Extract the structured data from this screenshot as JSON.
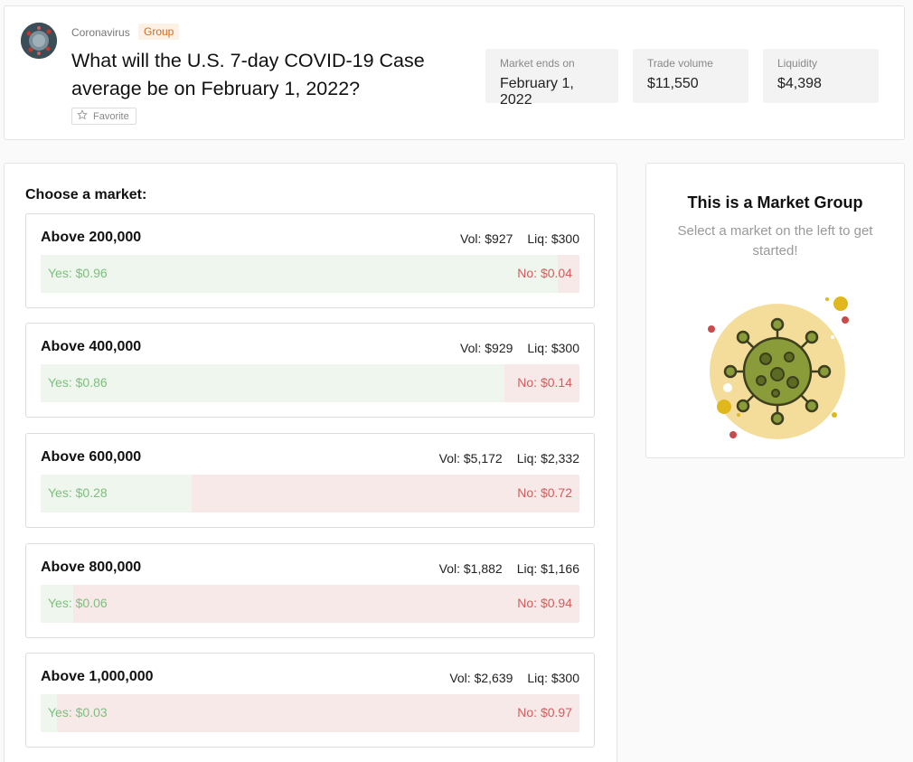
{
  "header": {
    "category": "Coronavirus",
    "badge": "Group",
    "question": "What will the U.S. 7-day COVID-19 Case average be on February 1, 2022?",
    "favorite_label": "Favorite",
    "stats": [
      {
        "label": "Market ends on",
        "value": "February 1, 2022"
      },
      {
        "label": "Trade volume",
        "value": "$11,550"
      },
      {
        "label": "Liquidity",
        "value": "$4,398"
      }
    ]
  },
  "markets": {
    "heading": "Choose a market:",
    "items": [
      {
        "title": "Above 200,000",
        "vol": "Vol: $927",
        "liq": "Liq: $300",
        "yes": "Yes: $0.96",
        "no": "No: $0.04",
        "yes_price": 0.96
      },
      {
        "title": "Above 400,000",
        "vol": "Vol: $929",
        "liq": "Liq: $300",
        "yes": "Yes: $0.86",
        "no": "No: $0.14",
        "yes_price": 0.86
      },
      {
        "title": "Above 600,000",
        "vol": "Vol: $5,172",
        "liq": "Liq: $2,332",
        "yes": "Yes: $0.28",
        "no": "No: $0.72",
        "yes_price": 0.28
      },
      {
        "title": "Above 800,000",
        "vol": "Vol: $1,882",
        "liq": "Liq: $1,166",
        "yes": "Yes: $0.06",
        "no": "No: $0.94",
        "yes_price": 0.06
      },
      {
        "title": "Above 1,000,000",
        "vol": "Vol: $2,639",
        "liq": "Liq: $300",
        "yes": "Yes: $0.03",
        "no": "No: $0.97",
        "yes_price": 0.03
      }
    ]
  },
  "group_panel": {
    "title": "This is a Market Group",
    "subtitle": "Select a market on the left to get started!",
    "illustration": "virus-illustration"
  },
  "colors": {
    "yes_text": "#7dbf7d",
    "no_text": "#d35c5c",
    "yes_bg": "#eef6ee",
    "no_bg": "#f8e9e9",
    "badge_text": "#c8702a",
    "virus_green": "#8a9c3a"
  }
}
